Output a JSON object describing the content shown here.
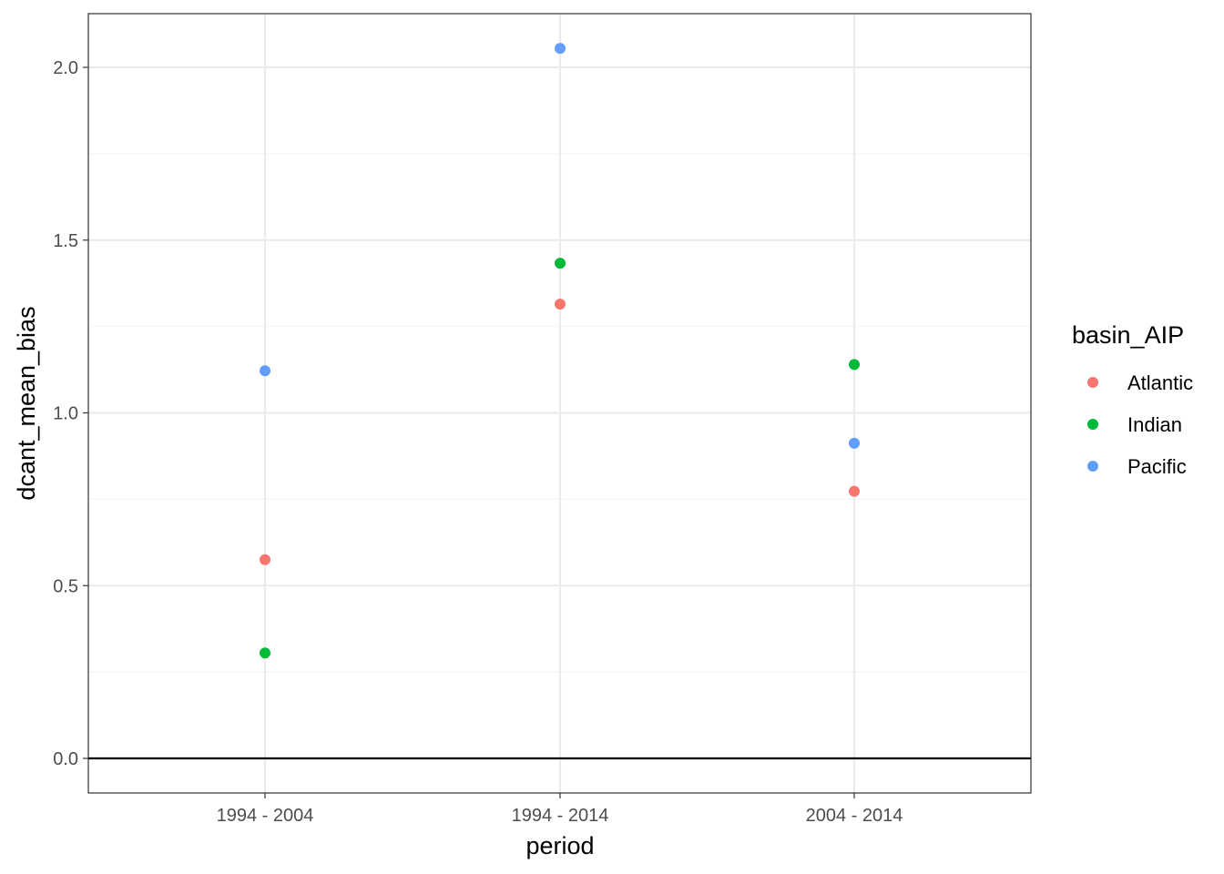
{
  "chart_data": {
    "type": "scatter",
    "xlabel": "period",
    "ylabel": "dcant_mean_bias",
    "categories": [
      "1994 - 2004",
      "1994 - 2014",
      "2004 - 2014"
    ],
    "ylim": [
      -0.1,
      2.16
    ],
    "yticks": [
      0.0,
      0.5,
      1.0,
      1.5,
      2.0
    ],
    "ytick_labels": [
      "0.0",
      "0.5",
      "1.0",
      "1.5",
      "2.0"
    ],
    "grid": true,
    "reference_line_y": 0.0,
    "legend": {
      "title": "basin_AIP",
      "placement": "right"
    },
    "series": [
      {
        "name": "Atlantic",
        "color": "#F8766D",
        "values": [
          0.575,
          1.315,
          0.773
        ]
      },
      {
        "name": "Indian",
        "color": "#00BA38",
        "values": [
          0.305,
          1.433,
          1.14
        ]
      },
      {
        "name": "Pacific",
        "color": "#619CFF",
        "values": [
          1.122,
          2.055,
          0.912
        ]
      }
    ]
  }
}
